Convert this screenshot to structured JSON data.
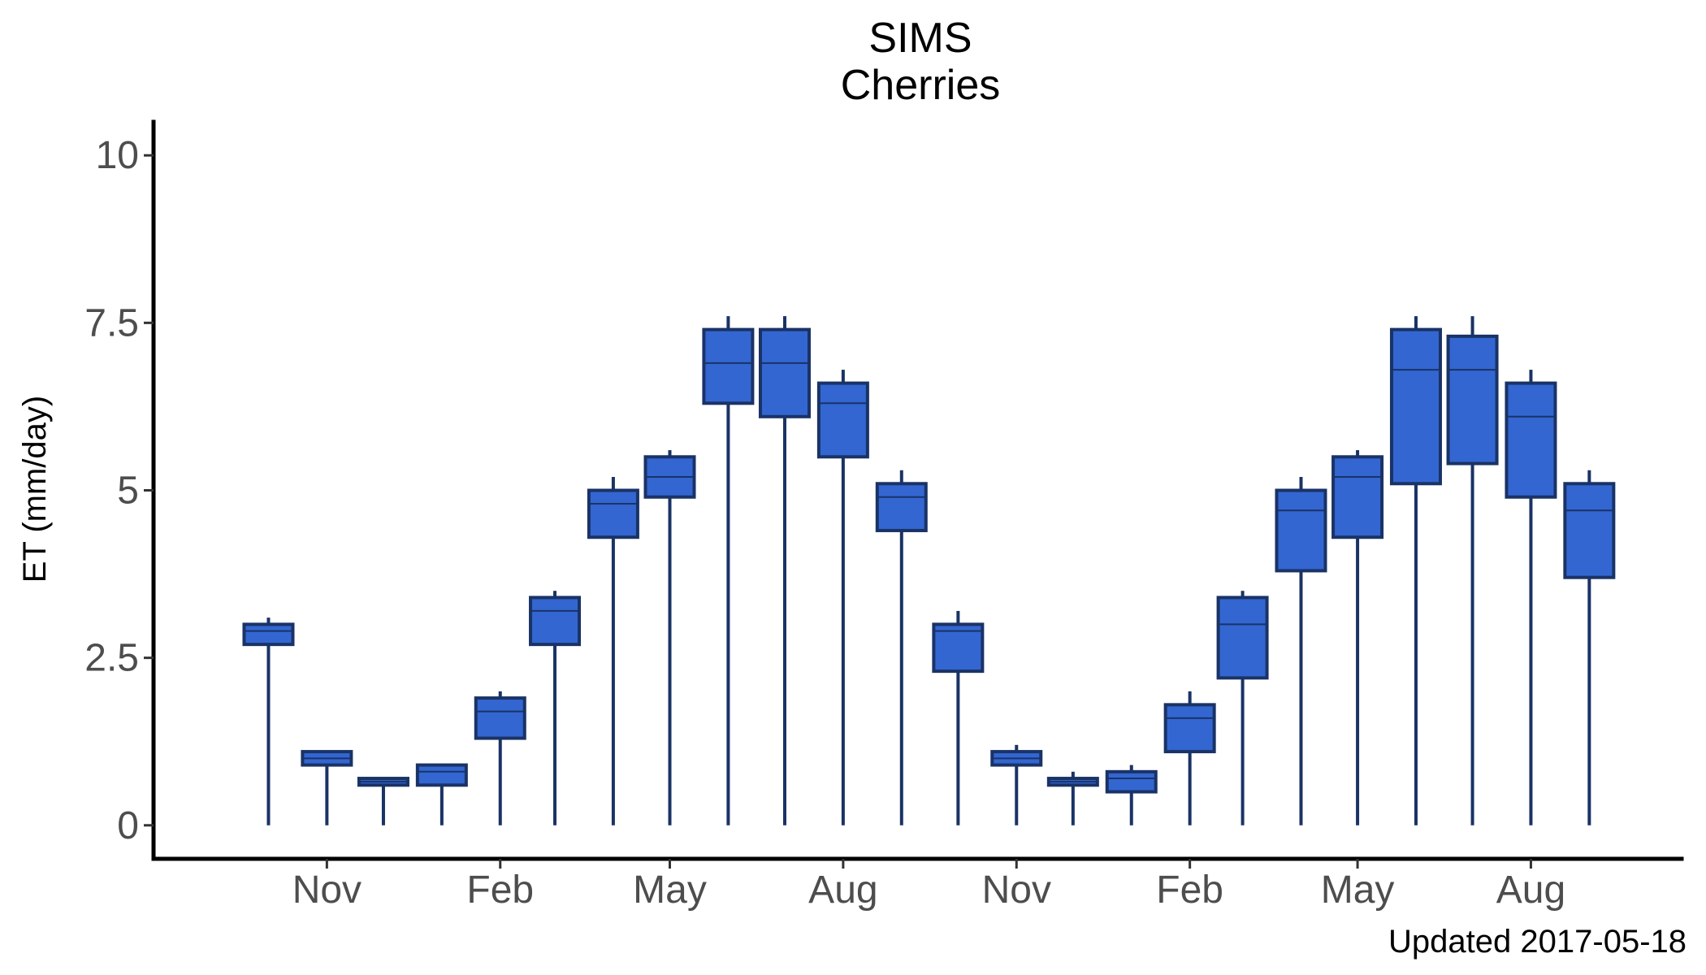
{
  "chart_data": {
    "type": "boxplot",
    "title": "SIMS",
    "subtitle": "Cherries",
    "xlabel": "",
    "ylabel": "ET (mm/day)",
    "ylim": [
      -0.5,
      10.5
    ],
    "yticks": [
      "0",
      "2.5",
      "5",
      "7.5",
      "10"
    ],
    "ytick_values": [
      0,
      2.5,
      5,
      7.5,
      10
    ],
    "xlim": [
      "2015-08-01",
      "2017-10-20"
    ],
    "xticks": [
      {
        "label": "Nov",
        "date": "2015-11-01"
      },
      {
        "label": "Feb",
        "date": "2016-02-01"
      },
      {
        "label": "May",
        "date": "2016-05-01"
      },
      {
        "label": "Aug",
        "date": "2016-08-01"
      },
      {
        "label": "Nov",
        "date": "2016-11-01"
      },
      {
        "label": "Feb",
        "date": "2017-02-01"
      },
      {
        "label": "May",
        "date": "2017-05-01"
      },
      {
        "label": "Aug",
        "date": "2017-08-01"
      }
    ],
    "caption": "Updated  2017-05-18",
    "colors": {
      "fill": "#3366d1",
      "stroke": "#1a3366"
    },
    "boxes": [
      {
        "date": "2015-10-01",
        "min": 0,
        "q1": 2.7,
        "median": 2.9,
        "q3": 3.0,
        "max": 3.1
      },
      {
        "date": "2015-11-01",
        "min": 0,
        "q1": 0.9,
        "median": 1.0,
        "q3": 1.1,
        "max": 1.1
      },
      {
        "date": "2015-12-01",
        "min": 0,
        "q1": 0.6,
        "median": 0.65,
        "q3": 0.7,
        "max": 0.7
      },
      {
        "date": "2016-01-01",
        "min": 0,
        "q1": 0.6,
        "median": 0.8,
        "q3": 0.9,
        "max": 0.9
      },
      {
        "date": "2016-02-01",
        "min": 0,
        "q1": 1.3,
        "median": 1.7,
        "q3": 1.9,
        "max": 2.0
      },
      {
        "date": "2016-03-01",
        "min": 0,
        "q1": 2.7,
        "median": 3.2,
        "q3": 3.4,
        "max": 3.5
      },
      {
        "date": "2016-04-01",
        "min": 0,
        "q1": 4.3,
        "median": 4.8,
        "q3": 5.0,
        "max": 5.2
      },
      {
        "date": "2016-05-01",
        "min": 0,
        "q1": 4.9,
        "median": 5.2,
        "q3": 5.5,
        "max": 5.6
      },
      {
        "date": "2016-06-01",
        "min": 0,
        "q1": 6.3,
        "median": 6.9,
        "q3": 7.4,
        "max": 7.6
      },
      {
        "date": "2016-07-01",
        "min": 0,
        "q1": 6.1,
        "median": 6.9,
        "q3": 7.4,
        "max": 7.6
      },
      {
        "date": "2016-08-01",
        "min": 0,
        "q1": 5.5,
        "median": 6.3,
        "q3": 6.6,
        "max": 6.8
      },
      {
        "date": "2016-09-01",
        "min": 0,
        "q1": 4.4,
        "median": 4.9,
        "q3": 5.1,
        "max": 5.3
      },
      {
        "date": "2016-10-01",
        "min": 0,
        "q1": 2.3,
        "median": 2.9,
        "q3": 3.0,
        "max": 3.2
      },
      {
        "date": "2016-11-01",
        "min": 0,
        "q1": 0.9,
        "median": 1.0,
        "q3": 1.1,
        "max": 1.2
      },
      {
        "date": "2016-12-01",
        "min": 0,
        "q1": 0.6,
        "median": 0.65,
        "q3": 0.7,
        "max": 0.8
      },
      {
        "date": "2017-01-01",
        "min": 0,
        "q1": 0.5,
        "median": 0.7,
        "q3": 0.8,
        "max": 0.9
      },
      {
        "date": "2017-02-01",
        "min": 0,
        "q1": 1.1,
        "median": 1.6,
        "q3": 1.8,
        "max": 2.0
      },
      {
        "date": "2017-03-01",
        "min": 0,
        "q1": 2.2,
        "median": 3.0,
        "q3": 3.4,
        "max": 3.5
      },
      {
        "date": "2017-04-01",
        "min": 0,
        "q1": 3.8,
        "median": 4.7,
        "q3": 5.0,
        "max": 5.2
      },
      {
        "date": "2017-05-01",
        "min": 0,
        "q1": 4.3,
        "median": 5.2,
        "q3": 5.5,
        "max": 5.6
      },
      {
        "date": "2017-06-01",
        "min": 0,
        "q1": 5.1,
        "median": 6.8,
        "q3": 7.4,
        "max": 7.6
      },
      {
        "date": "2017-07-01",
        "min": 0,
        "q1": 5.4,
        "median": 6.8,
        "q3": 7.3,
        "max": 7.6
      },
      {
        "date": "2017-08-01",
        "min": 0,
        "q1": 4.9,
        "median": 6.1,
        "q3": 6.6,
        "max": 6.8
      },
      {
        "date": "2017-09-01",
        "min": 0,
        "q1": 3.7,
        "median": 4.7,
        "q3": 5.1,
        "max": 5.3
      }
    ]
  }
}
